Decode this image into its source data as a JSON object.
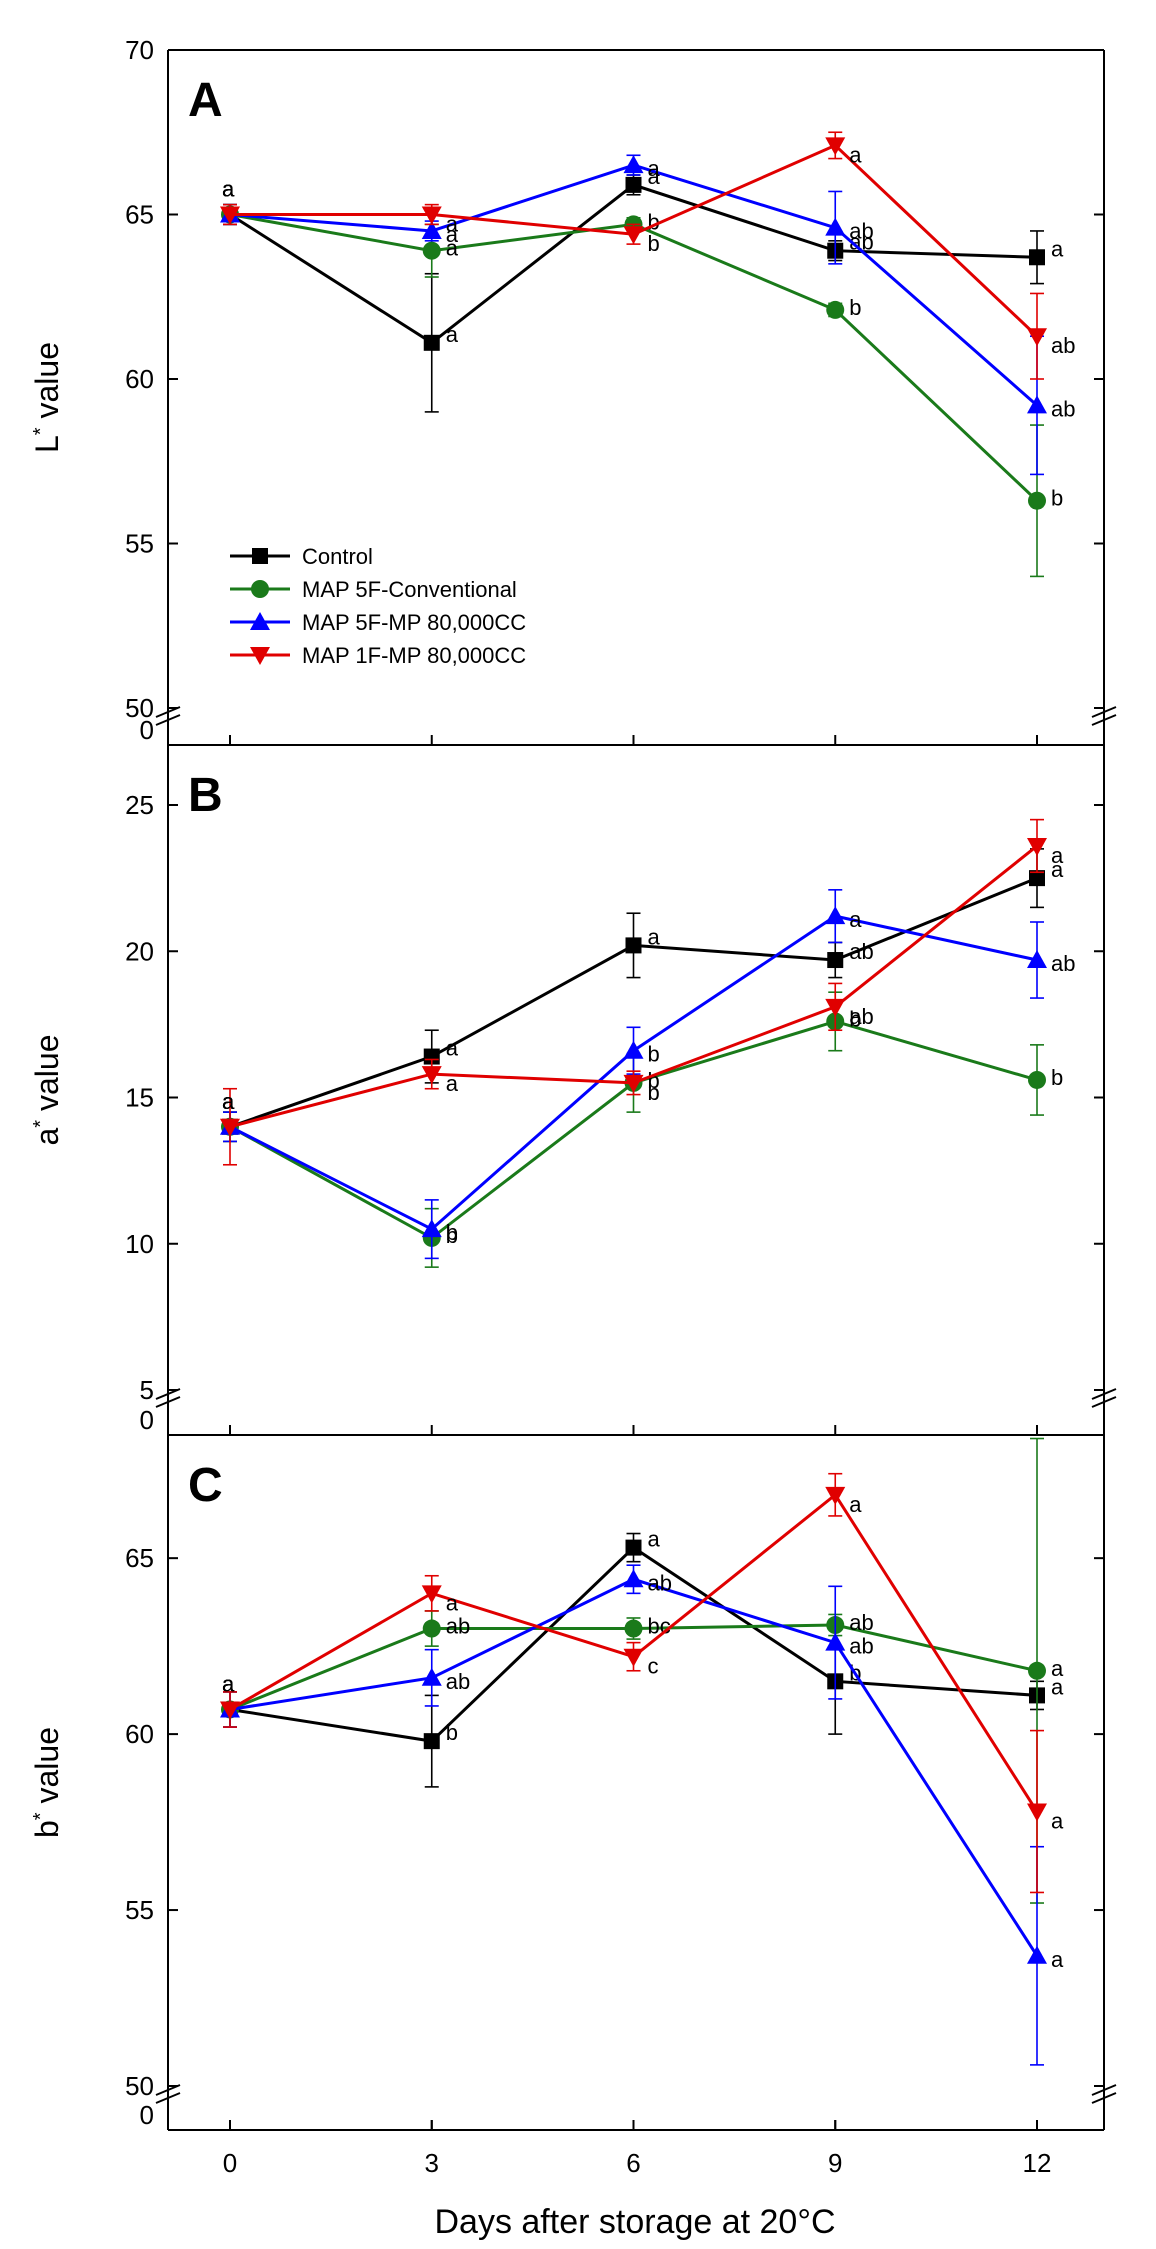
{
  "chart_data": [
    {
      "type": "line",
      "panel": "A",
      "ylabel": "L* value",
      "ylabel_main": "L",
      "ylabel_sup": "*",
      "ylabel_tail": " value",
      "ylim": [
        50,
        70
      ],
      "yticks": [
        50,
        55,
        60,
        65,
        70
      ],
      "axis_break_low": "0",
      "x": [
        0,
        3,
        6,
        9,
        12
      ],
      "series": [
        {
          "name": "Control",
          "color": "#000000",
          "marker": "square",
          "values": [
            65.0,
            61.1,
            65.9,
            63.9,
            63.7
          ],
          "errors": [
            0.3,
            2.1,
            0.3,
            0.3,
            0.8
          ],
          "letters": [
            "a",
            "a",
            "a",
            "ab",
            "a"
          ]
        },
        {
          "name": "MAP 5F-Conventional",
          "color": "#1a7a1a",
          "marker": "circle",
          "values": [
            65.0,
            63.9,
            64.7,
            62.1,
            56.3
          ],
          "errors": [
            0.3,
            0.8,
            0.2,
            0.2,
            2.3
          ],
          "letters": [
            "a",
            "a",
            "b",
            "b",
            "b"
          ]
        },
        {
          "name": "MAP 5F-MP 80,000CC",
          "color": "#0000ff",
          "marker": "triangle-up",
          "values": [
            65.0,
            64.5,
            66.5,
            64.6,
            59.2
          ],
          "errors": [
            0.3,
            0.3,
            0.3,
            1.1,
            2.1
          ],
          "letters": [
            "a",
            "a",
            "a",
            "ab",
            "ab"
          ]
        },
        {
          "name": "MAP 1F-MP 80,000CC",
          "color": "#e00000",
          "marker": "triangle-down",
          "values": [
            65.0,
            65.0,
            64.4,
            67.1,
            61.3
          ],
          "errors": [
            0.3,
            0.3,
            0.3,
            0.4,
            1.3
          ],
          "letters": [
            "a",
            "a",
            "b",
            "a",
            "ab"
          ]
        }
      ]
    },
    {
      "type": "line",
      "panel": "B",
      "ylabel": "a* value",
      "ylabel_main": "a",
      "ylabel_sup": "*",
      "ylabel_tail": " value",
      "ylim": [
        5,
        25
      ],
      "yticks": [
        5,
        10,
        15,
        20,
        25
      ],
      "axis_break_low": "0",
      "x": [
        0,
        3,
        6,
        9,
        12
      ],
      "series": [
        {
          "name": "Control",
          "color": "#000000",
          "marker": "square",
          "values": [
            14.0,
            16.4,
            20.2,
            19.7,
            22.5
          ],
          "errors": [
            0.5,
            0.9,
            1.1,
            0.6,
            1.0
          ],
          "letters": [
            "a",
            "a",
            "a",
            "ab",
            "a"
          ]
        },
        {
          "name": "MAP 5F-Conventional",
          "color": "#1a7a1a",
          "marker": "circle",
          "values": [
            14.0,
            10.2,
            15.5,
            17.6,
            15.6
          ],
          "errors": [
            0.5,
            1.0,
            1.0,
            1.0,
            1.2
          ],
          "letters": [
            "a",
            "b",
            "b",
            "b",
            "b"
          ]
        },
        {
          "name": "MAP 5F-MP 80,000CC",
          "color": "#0000ff",
          "marker": "triangle-up",
          "values": [
            14.0,
            10.5,
            16.6,
            21.2,
            19.7
          ],
          "errors": [
            0.5,
            1.0,
            0.8,
            0.9,
            1.3
          ],
          "letters": [
            "a",
            "b",
            "b",
            "a",
            "ab"
          ]
        },
        {
          "name": "MAP 1F-MP 80,000CC",
          "color": "#e00000",
          "marker": "triangle-down",
          "values": [
            14.0,
            15.8,
            15.5,
            18.1,
            23.6
          ],
          "errors": [
            1.3,
            0.5,
            0.4,
            0.8,
            0.9
          ],
          "letters": [
            "a",
            "a",
            "b",
            "ab",
            "a"
          ]
        }
      ]
    },
    {
      "type": "line",
      "panel": "C",
      "ylabel": "b* value",
      "ylabel_main": "b",
      "ylabel_sup": "*",
      "ylabel_tail": " value",
      "ylim": [
        50,
        68.5
      ],
      "yticks": [
        50,
        55,
        60,
        65
      ],
      "axis_break_low": "0",
      "xlabel": "Days after storage at 20°C",
      "xticks": [
        "0",
        "3",
        "6",
        "9",
        "12"
      ],
      "x": [
        0,
        3,
        6,
        9,
        12
      ],
      "series": [
        {
          "name": "Control",
          "color": "#000000",
          "marker": "square",
          "values": [
            60.7,
            59.8,
            65.3,
            61.5,
            61.1
          ],
          "errors": [
            0.5,
            1.3,
            0.4,
            1.5,
            0.4
          ],
          "letters": [
            "a",
            "b",
            "a",
            "b",
            "a"
          ]
        },
        {
          "name": "MAP 5F-Conventional",
          "color": "#1a7a1a",
          "marker": "circle",
          "values": [
            60.7,
            63.0,
            63.0,
            63.1,
            61.8
          ],
          "errors": [
            0.5,
            0.5,
            0.3,
            0.3,
            6.6
          ],
          "letters": [
            "a",
            "ab",
            "bc",
            "ab",
            "a"
          ]
        },
        {
          "name": "MAP 5F-MP 80,000CC",
          "color": "#0000ff",
          "marker": "triangle-up",
          "values": [
            60.7,
            61.6,
            64.4,
            62.6,
            53.7
          ],
          "errors": [
            0.5,
            0.8,
            0.4,
            1.6,
            3.1
          ],
          "letters": [
            "a",
            "ab",
            "ab",
            "ab",
            "a"
          ]
        },
        {
          "name": "MAP 1F-MP 80,000CC",
          "color": "#e00000",
          "marker": "triangle-down",
          "values": [
            60.7,
            64.0,
            62.2,
            66.8,
            57.8
          ],
          "errors": [
            0.5,
            0.5,
            0.4,
            0.6,
            2.3
          ],
          "letters": [
            "a",
            "a",
            "c",
            "a",
            "a"
          ]
        }
      ]
    }
  ],
  "legend": {
    "location": "panel A lower-left",
    "entries": [
      {
        "label": "Control",
        "color": "#000000",
        "marker": "square"
      },
      {
        "label": "MAP 5F-Conventional",
        "color": "#1a7a1a",
        "marker": "circle"
      },
      {
        "label": "MAP 5F-MP 80,000CC",
        "color": "#0000ff",
        "marker": "triangle-up"
      },
      {
        "label": "MAP 1F-MP 80,000CC",
        "color": "#e00000",
        "marker": "triangle-down"
      }
    ]
  }
}
